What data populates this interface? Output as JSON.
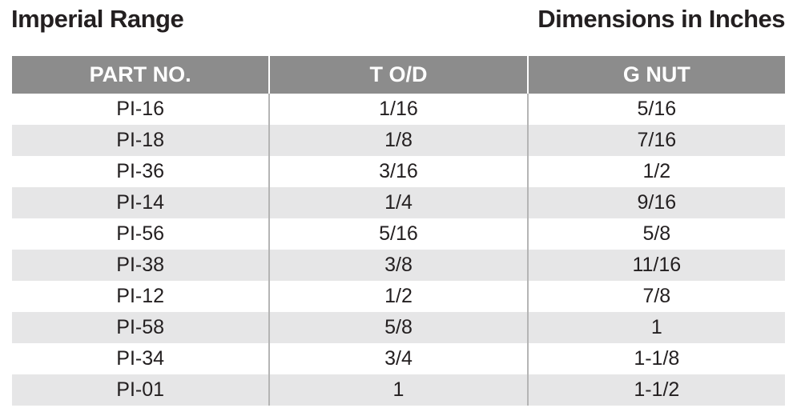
{
  "header": {
    "title": "Imperial Range",
    "subtitle": "Dimensions in Inches"
  },
  "table": {
    "columns": [
      "PART NO.",
      "T O/D",
      "G NUT"
    ],
    "rows": [
      [
        "PI-16",
        "1/16",
        "5/16"
      ],
      [
        "PI-18",
        "1/8",
        "7/16"
      ],
      [
        "PI-36",
        "3/16",
        "1/2"
      ],
      [
        "PI-14",
        "1/4",
        "9/16"
      ],
      [
        "PI-56",
        "5/16",
        "5/8"
      ],
      [
        "PI-38",
        "3/8",
        "11/16"
      ],
      [
        "PI-12",
        "1/2",
        "7/8"
      ],
      [
        "PI-58",
        "5/8",
        "1"
      ],
      [
        "PI-34",
        "3/4",
        "1-1/8"
      ],
      [
        "PI-01",
        "1",
        "1-1/2"
      ]
    ]
  }
}
